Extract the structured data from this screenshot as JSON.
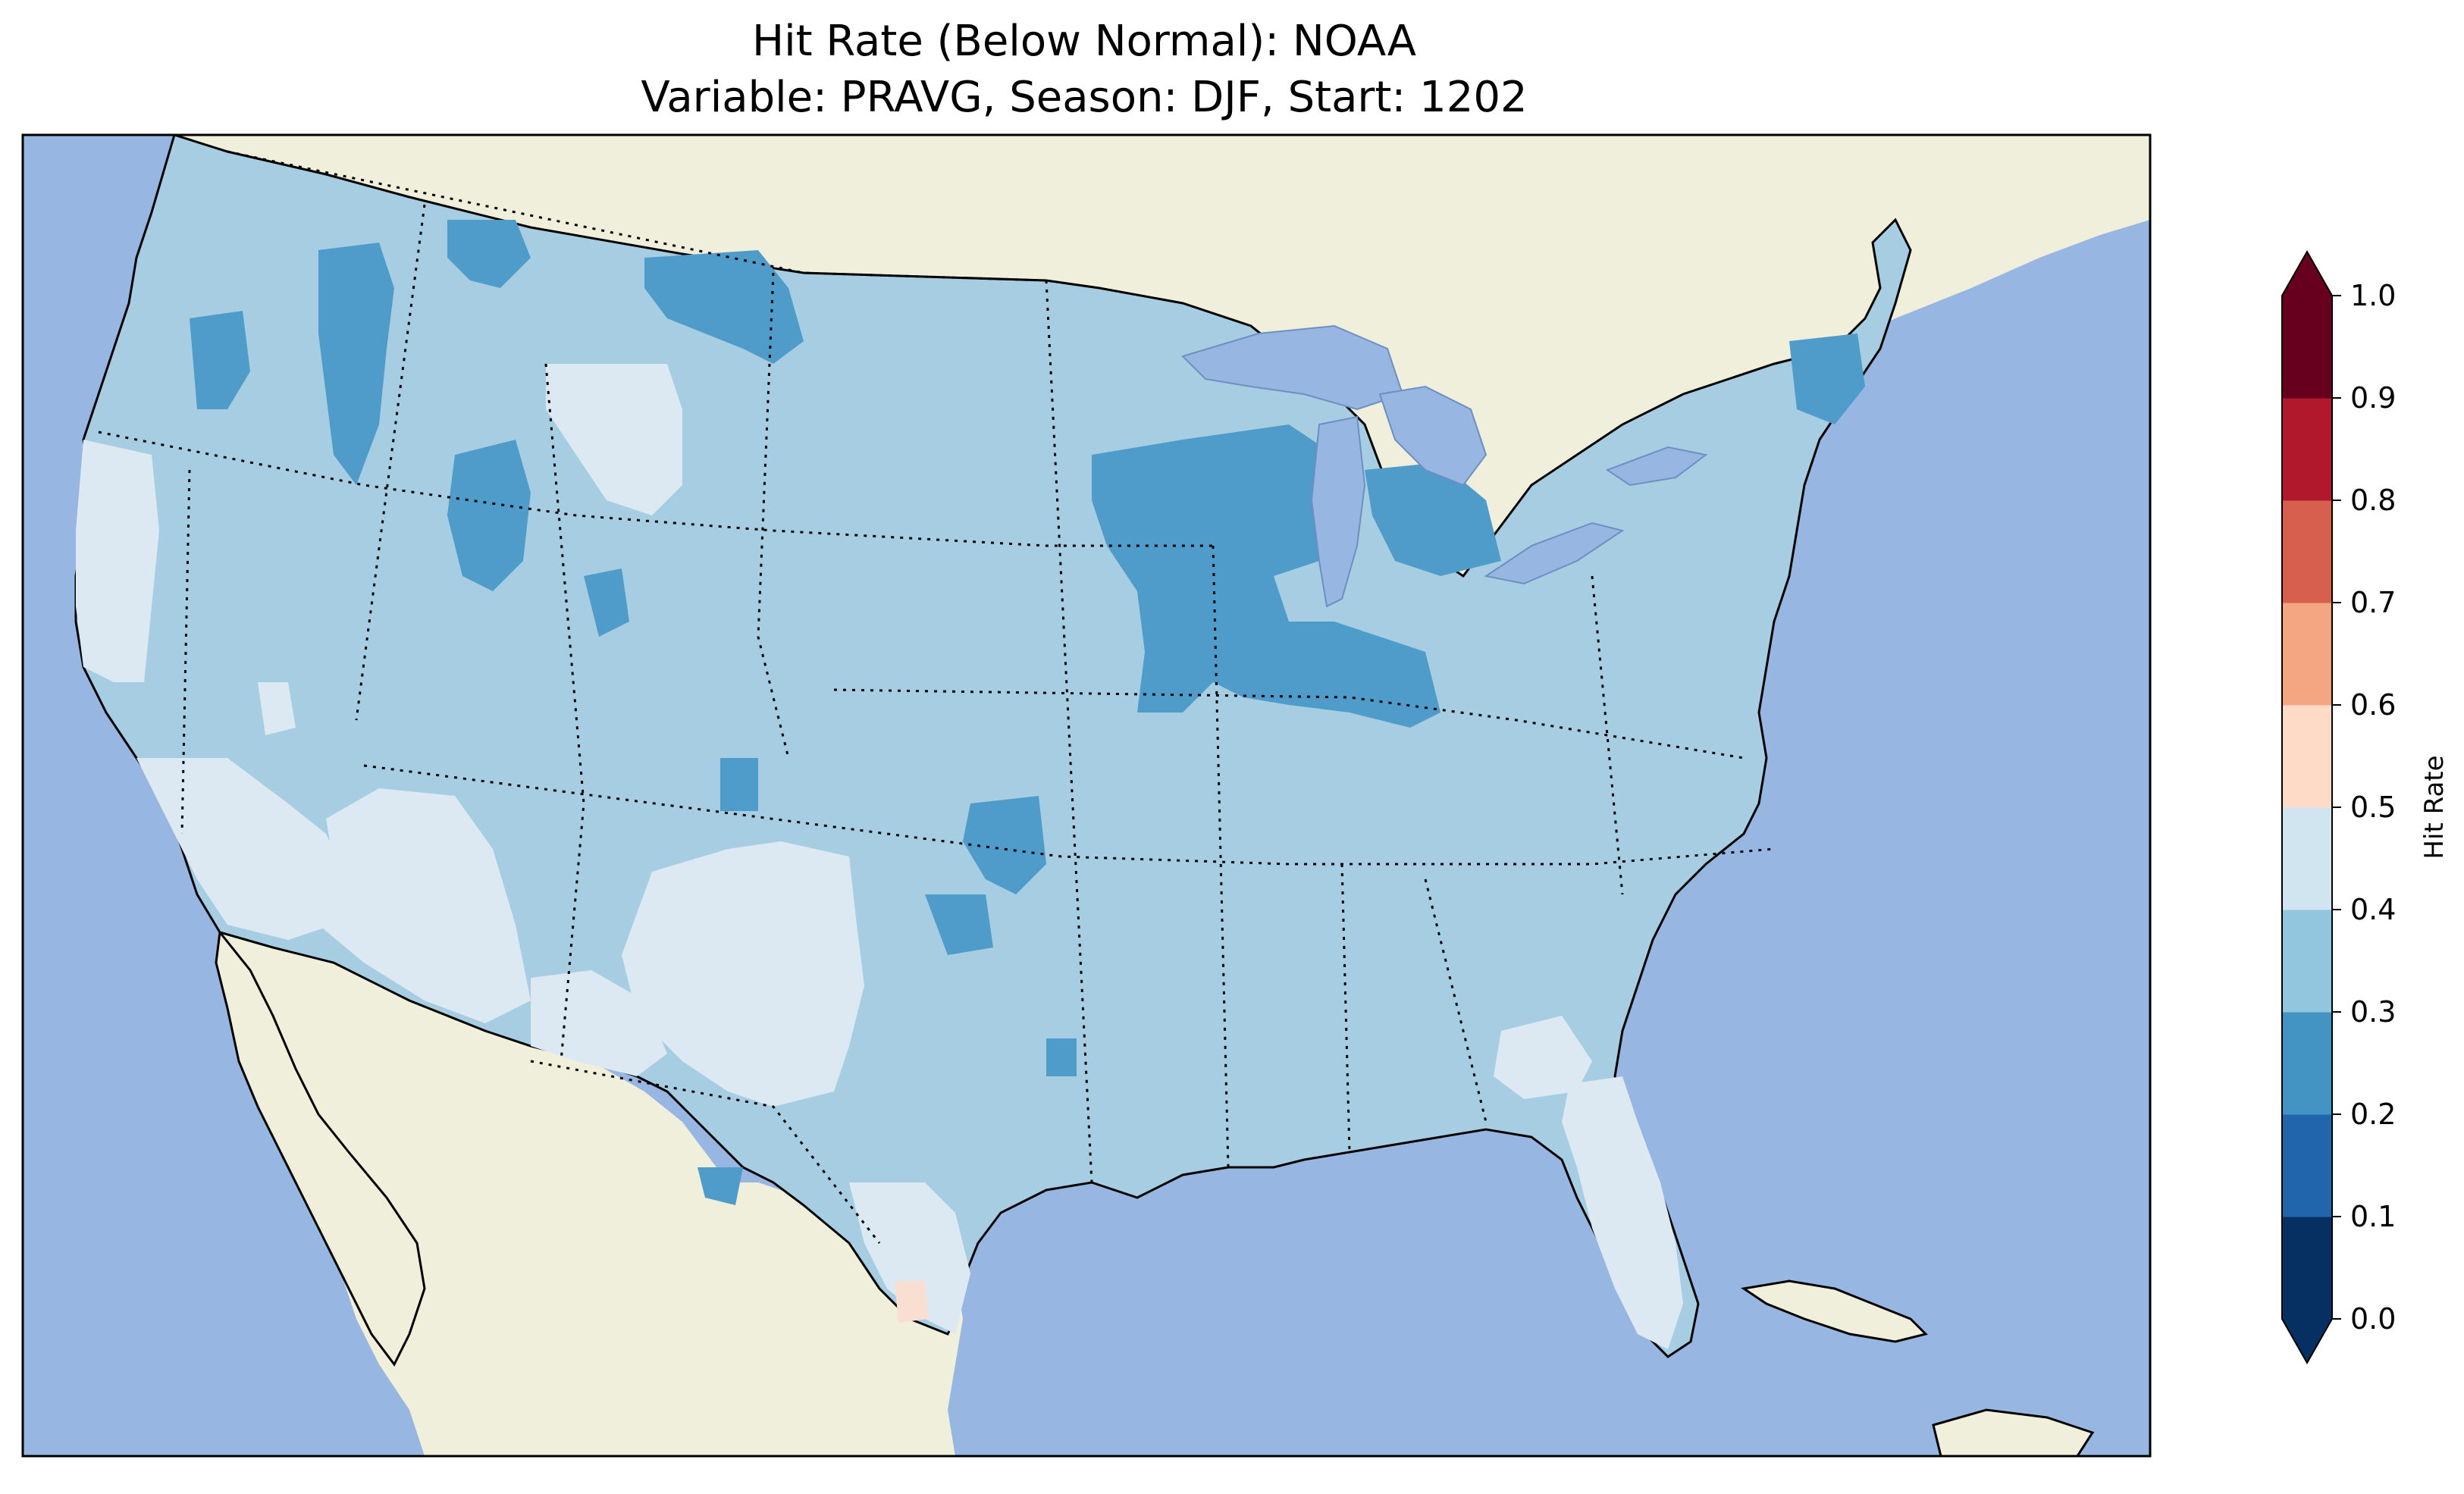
{
  "title_line1": "Hit Rate (Below Normal): NOAA",
  "title_line2": "Variable: PRAVG, Season: DJF, Start: 1202",
  "colors": {
    "ocean": "#97b6e1",
    "land": "#efefdb",
    "coast": "#000000"
  },
  "colorbar": {
    "label": "Hit Rate",
    "min": 0.0,
    "max": 1.0,
    "ticks": [
      "0.0",
      "0.1",
      "0.2",
      "0.3",
      "0.4",
      "0.5",
      "0.6",
      "0.7",
      "0.8",
      "0.9",
      "1.0"
    ],
    "colors": [
      "#053061",
      "#2166ac",
      "#4393c3",
      "#92c5de",
      "#d1e5f0",
      "#fddbc7",
      "#f4a582",
      "#d6604d",
      "#b2182b",
      "#67001f"
    ],
    "under_color": "#053061",
    "over_color": "#67001f"
  },
  "map_values": {
    "dominant_hit_rate_range": [
      0.3,
      0.4
    ],
    "region_ranges": [
      {
        "region": "Midwest / Great Lakes",
        "range": [
          0.2,
          0.3
        ]
      },
      {
        "region": "Northern Rockies",
        "range": [
          0.2,
          0.3
        ]
      },
      {
        "region": "Southwest / California / Florida",
        "range": [
          0.4,
          0.5
        ]
      },
      {
        "region": "South Texas spot",
        "range": [
          0.5,
          0.6
        ]
      }
    ]
  }
}
